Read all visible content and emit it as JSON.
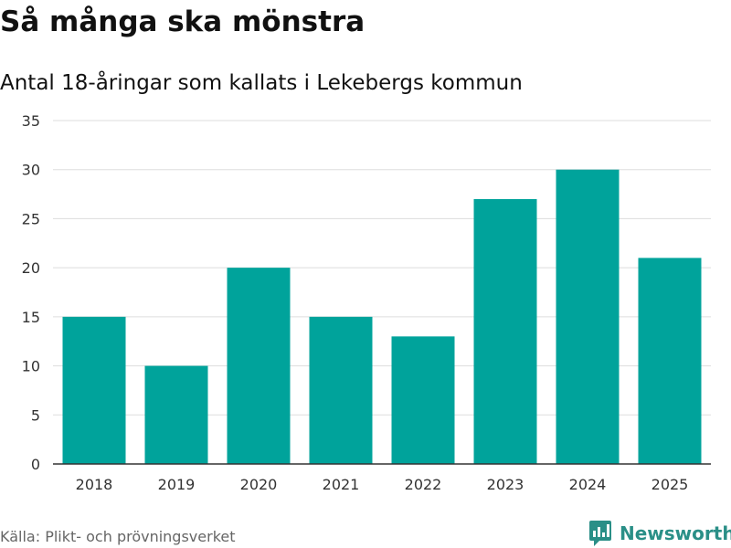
{
  "title": "Så många ska mönstra",
  "subtitle": "Antal 18-åringar som kallats i Lekebergs kommun",
  "source": "Källa: Plikt- och prövningsverket",
  "brand": {
    "name": "Newsworthy",
    "icon": "newsworthy-logo-icon",
    "color": "#2a8f87"
  },
  "colors": {
    "bar": "#00a39b",
    "grid": "#dddddd",
    "axis": "#333333",
    "tick_text": "#333333"
  },
  "chart_data": {
    "type": "bar",
    "title": "Så många ska mönstra",
    "subtitle": "Antal 18-åringar som kallats i Lekebergs kommun",
    "categories": [
      "2018",
      "2019",
      "2020",
      "2021",
      "2022",
      "2023",
      "2024",
      "2025"
    ],
    "values": [
      15,
      10,
      20,
      15,
      13,
      27,
      30,
      21
    ],
    "ylim": [
      0,
      35
    ],
    "yticks": [
      0,
      5,
      10,
      15,
      20,
      25,
      30,
      35
    ],
    "xlabel": "",
    "ylabel": "",
    "grid": true,
    "legend": "none"
  }
}
